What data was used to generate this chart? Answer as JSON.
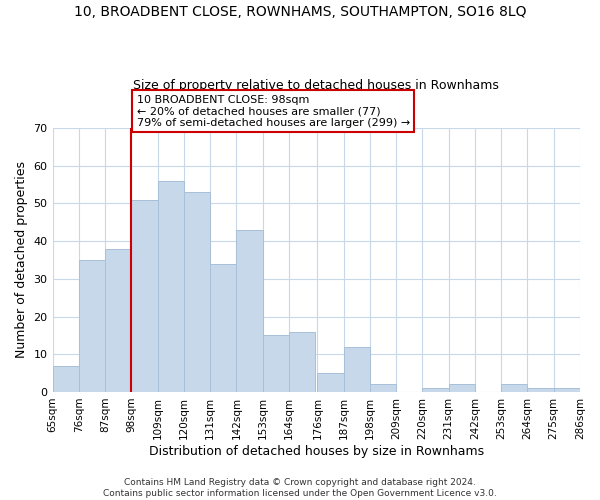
{
  "title_line1": "10, BROADBENT CLOSE, ROWNHAMS, SOUTHAMPTON, SO16 8LQ",
  "title_line2": "Size of property relative to detached houses in Rownhams",
  "xlabel": "Distribution of detached houses by size in Rownhams",
  "ylabel": "Number of detached properties",
  "footer_line1": "Contains HM Land Registry data © Crown copyright and database right 2024.",
  "footer_line2": "Contains public sector information licensed under the Open Government Licence v3.0.",
  "bin_edges": [
    65,
    76,
    87,
    98,
    109,
    120,
    131,
    142,
    153,
    164,
    176,
    187,
    198,
    209,
    220,
    231,
    242,
    253,
    264,
    275,
    286
  ],
  "bar_heights": [
    7,
    35,
    38,
    51,
    56,
    53,
    34,
    43,
    15,
    16,
    5,
    12,
    2,
    0,
    1,
    2,
    0,
    2,
    1,
    1
  ],
  "bar_color": "#c8d8eb",
  "bar_edgecolor": "#a8c0d8",
  "vline_x": 98,
  "vline_color": "#cc0000",
  "annotation_title": "10 BROADBENT CLOSE: 98sqm",
  "annotation_line1": "← 20% of detached houses are smaller (77)",
  "annotation_line2": "79% of semi-detached houses are larger (299) →",
  "annotation_box_edgecolor": "#cc0000",
  "annotation_box_facecolor": "#ffffff",
  "ylim": [
    0,
    70
  ],
  "yticks": [
    0,
    10,
    20,
    30,
    40,
    50,
    60,
    70
  ],
  "tick_labels": [
    "65sqm",
    "76sqm",
    "87sqm",
    "98sqm",
    "109sqm",
    "120sqm",
    "131sqm",
    "142sqm",
    "153sqm",
    "164sqm",
    "176sqm",
    "187sqm",
    "198sqm",
    "209sqm",
    "220sqm",
    "231sqm",
    "242sqm",
    "253sqm",
    "264sqm",
    "275sqm",
    "286sqm"
  ],
  "background_color": "#ffffff",
  "grid_color": "#c8d8e8"
}
